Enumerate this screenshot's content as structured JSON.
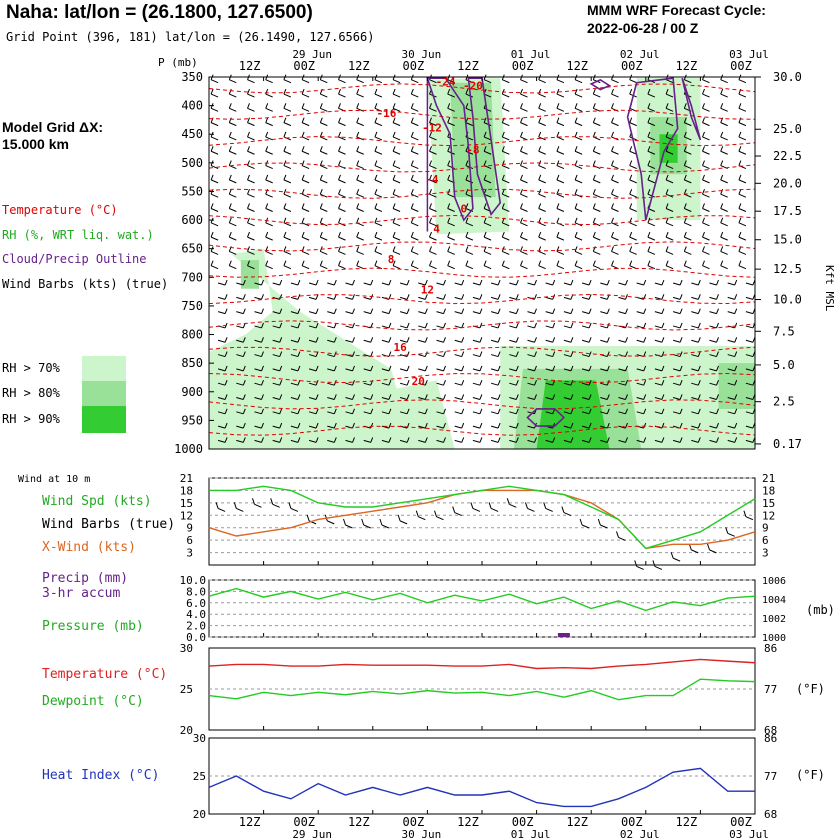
{
  "header": {
    "title": "Naha:  lat/lon = (26.1800, 127.6500)",
    "grid_point": "Grid Point (396, 181) lat/lon = (26.1490, 127.6566)",
    "cycle_line1": "MMM WRF Forecast Cycle:",
    "cycle_line2": "2022-06-28 / 00  Z",
    "model_grid_line1": "Model Grid ΔX:",
    "model_grid_line2": " 15.000 km"
  },
  "legend": {
    "temperature": "Temperature (°C)",
    "rh": "RH (%, WRT liq. wat.)",
    "cloud": "Cloud/Precip Outline",
    "barbs": "Wind Barbs (kts) (true)",
    "rh70": "RH > 70%",
    "rh80": "RH > 80%",
    "rh90": "RH > 90%",
    "colors": {
      "temperature": "#e00000",
      "rh": "#22aa22",
      "cloud": "#662288",
      "rh70": "#ccf5cc",
      "rh80": "#99e099",
      "rh90": "#33cc33"
    }
  },
  "time_axis": {
    "ticks": [
      "12Z",
      "00Z",
      "12Z",
      "00Z",
      "12Z",
      "00Z",
      "12Z",
      "00Z",
      "12Z",
      "00Z"
    ],
    "dates": [
      "29 Jun",
      "30 Jun",
      "01 Jul",
      "02 Jul",
      "03 Jul"
    ],
    "p_label": "P (mb)",
    "kft_label": "Kft MSL"
  },
  "chart_data": [
    {
      "name": "cross-section",
      "type": "heatmap",
      "x_hours": [
        0,
        120
      ],
      "pressure_levels": [
        350,
        400,
        450,
        500,
        550,
        600,
        650,
        700,
        750,
        800,
        850,
        900,
        950,
        1000
      ],
      "height_kft": [
        "30.0",
        "25.0",
        "22.5",
        "20.0",
        "17.5",
        "15.0",
        "12.5",
        "10.0",
        "7.5",
        "5.0",
        "2.5",
        "0.17"
      ],
      "height_values": [
        30.0,
        25.0,
        22.5,
        20.0,
        17.5,
        15.0,
        12.5,
        10.0,
        7.5,
        5.0,
        2.5,
        0.17
      ],
      "isotherm_labels": [
        {
          "text": "-24",
          "hour": 52,
          "p": 365
        },
        {
          "text": "-20",
          "hour": 58,
          "p": 372
        },
        {
          "text": "-16",
          "hour": 39,
          "p": 420
        },
        {
          "text": "-12",
          "hour": 49,
          "p": 445
        },
        {
          "text": "-8",
          "hour": 58,
          "p": 484
        },
        {
          "text": "-4",
          "hour": 49,
          "p": 535
        },
        {
          "text": "0",
          "hour": 56,
          "p": 587
        },
        {
          "text": "4",
          "hour": 50,
          "p": 622
        },
        {
          "text": "8",
          "hour": 40,
          "p": 675
        },
        {
          "text": "12",
          "hour": 48,
          "p": 728
        },
        {
          "text": "16",
          "hour": 42,
          "p": 829
        },
        {
          "text": "20",
          "hour": 46,
          "p": 888
        }
      ],
      "wind_hint": "westerly upper, easterly low levels"
    },
    {
      "name": "wind",
      "type": "line",
      "title": "Wind at 10 m",
      "labels": {
        "speed": "Wind Spd (kts)",
        "barbs": "Wind Barbs (true)",
        "xwind": "X-Wind (kts)"
      },
      "x_hours": [
        0,
        6,
        12,
        18,
        24,
        30,
        36,
        42,
        48,
        54,
        60,
        66,
        72,
        78,
        84,
        90,
        96,
        102,
        108,
        114,
        120
      ],
      "speed": [
        18,
        18,
        19,
        18,
        15,
        14,
        14,
        15,
        16,
        17,
        18,
        19,
        18,
        17,
        14,
        11,
        4,
        6,
        8,
        12,
        16
      ],
      "xwind": [
        9,
        7,
        8,
        9,
        11,
        12,
        13,
        14,
        15,
        17,
        18,
        18,
        18,
        17,
        15,
        11,
        4,
        5,
        5,
        6,
        8
      ],
      "y_ticks": [
        3,
        6,
        9,
        12,
        15,
        18,
        21
      ],
      "ylim": [
        0,
        21
      ],
      "colors": {
        "speed": "#22cc22",
        "xwind": "#dd6622"
      }
    },
    {
      "name": "precip-pressure",
      "type": "line",
      "labels": {
        "precip": "Precip (mm)",
        "precip2": "3-hr accum",
        "pressure": "Pressure (mb)",
        "unit": "(mb)"
      },
      "precip_ticks": [
        "10.0",
        "8.0",
        "6.0",
        "4.0",
        "2.0",
        "0.0"
      ],
      "pressure_ticks": [
        "1006",
        "1004",
        "1002",
        "1000"
      ],
      "pressure_ylim": [
        1000,
        1006
      ],
      "x_hours": [
        0,
        6,
        12,
        18,
        24,
        30,
        36,
        42,
        48,
        54,
        60,
        66,
        72,
        78,
        84,
        90,
        96,
        102,
        108,
        114,
        120
      ],
      "pressure": [
        1004.3,
        1005.1,
        1004.2,
        1004.8,
        1004.0,
        1004.7,
        1003.9,
        1004.6,
        1003.6,
        1004.4,
        1003.8,
        1004.5,
        1003.5,
        1004.2,
        1003.0,
        1003.8,
        1002.8,
        1003.7,
        1003.3,
        1004.1,
        1004.3
      ],
      "precip_bars": [
        {
          "hour": 78,
          "value": 0.7
        }
      ],
      "colors": {
        "pressure": "#22cc22",
        "precip": "#662288"
      }
    },
    {
      "name": "temperature",
      "type": "line",
      "labels": {
        "temp": "Temperature (°C)",
        "dew": "Dewpoint (°C)",
        "unit": "(°F)"
      },
      "c_ticks": [
        "30",
        "25",
        "20"
      ],
      "f_ticks": [
        "86",
        "77",
        "68"
      ],
      "ylim": [
        20,
        30
      ],
      "x_hours": [
        0,
        6,
        12,
        18,
        24,
        30,
        36,
        42,
        48,
        54,
        60,
        66,
        72,
        78,
        84,
        90,
        96,
        102,
        108,
        114,
        120
      ],
      "temp": [
        27.8,
        28.0,
        28.0,
        27.8,
        27.8,
        28.0,
        27.9,
        27.9,
        27.9,
        27.8,
        27.8,
        28.0,
        27.5,
        27.6,
        27.5,
        27.8,
        28.0,
        28.3,
        28.6,
        28.4,
        28.2
      ],
      "dew": [
        24.2,
        23.8,
        24.6,
        24.2,
        24.6,
        24.3,
        24.7,
        24.4,
        24.8,
        24.5,
        24.6,
        24.2,
        24.7,
        24.0,
        24.8,
        23.7,
        24.2,
        24.2,
        26.2,
        26.0,
        25.9
      ],
      "colors": {
        "temp": "#dd2222",
        "dew": "#22cc22"
      }
    },
    {
      "name": "heat-index",
      "type": "line",
      "labels": {
        "hi": "Heat Index (°C)",
        "unit": "(°F)"
      },
      "c_ticks": [
        "30",
        "25",
        "20"
      ],
      "f_ticks": [
        "86",
        "77",
        "68"
      ],
      "ylim": [
        20,
        30
      ],
      "x_hours": [
        0,
        6,
        12,
        18,
        24,
        30,
        36,
        42,
        48,
        54,
        60,
        66,
        72,
        78,
        84,
        90,
        96,
        102,
        108,
        114,
        120
      ],
      "hi": [
        23.5,
        25.0,
        23.0,
        22.0,
        24.0,
        22.5,
        23.5,
        22.5,
        23.5,
        22.5,
        22.5,
        23.0,
        21.5,
        21.0,
        21.0,
        22.0,
        23.5,
        25.5,
        26.0,
        23.0,
        23.0
      ],
      "colors": {
        "hi": "#2233bb"
      }
    }
  ]
}
